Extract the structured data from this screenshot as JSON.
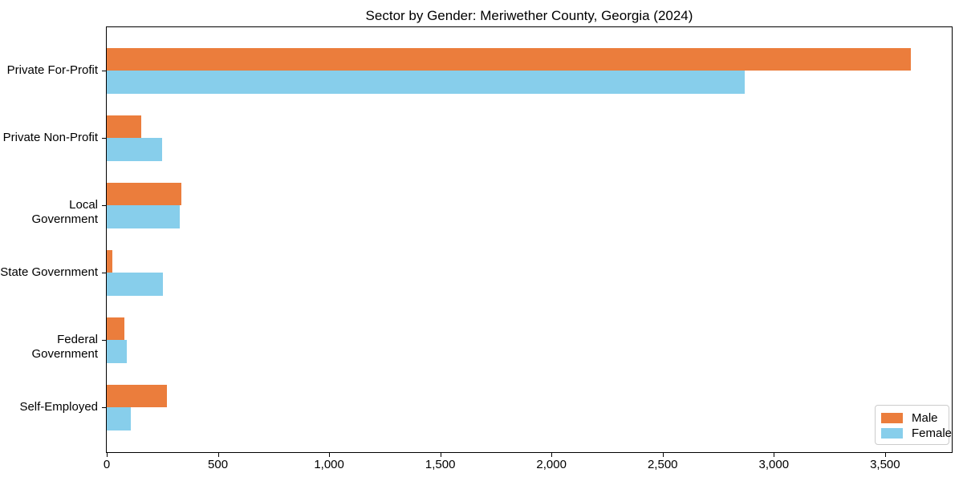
{
  "chart_data": {
    "type": "bar",
    "orientation": "horizontal",
    "title": "Sector by Gender: Meriwether County, Georgia (2024)",
    "xlabel": "",
    "ylabel": "",
    "categories": [
      "Private For-Profit",
      "Private Non-Profit",
      "Local Government",
      "State Government",
      "Federal Government",
      "Self-Employed"
    ],
    "series": [
      {
        "name": "Male",
        "color": "#EB7D3C",
        "values": [
          3617,
          156,
          337,
          25,
          81,
          270
        ]
      },
      {
        "name": "Female",
        "color": "#87CEEB",
        "values": [
          2870,
          248,
          330,
          253,
          91,
          109
        ]
      }
    ],
    "xlim": [
      0,
      3800
    ],
    "xticks": [
      0,
      500,
      1000,
      1500,
      2000,
      2500,
      3000,
      3500
    ],
    "xtick_labels": [
      "0",
      "500",
      "1,000",
      "1,500",
      "2,000",
      "2,500",
      "3,000",
      "3,500"
    ],
    "grid": false,
    "legend_position": "lower right",
    "frame": true,
    "colors": {
      "spine": "#000000",
      "background": "#ffffff",
      "legend_border": "#cccccc"
    }
  }
}
